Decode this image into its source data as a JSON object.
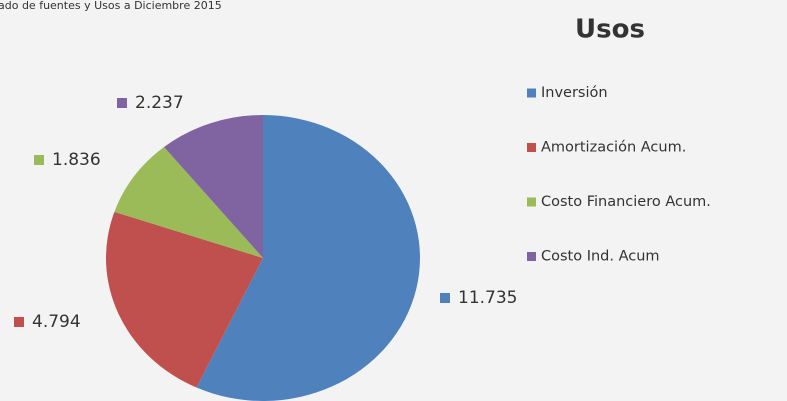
{
  "chart_data": {
    "type": "pie",
    "subtitle": "ado de fuentes y Usos a Diciembre 2015",
    "title": "Usos",
    "categories": [
      "Inversión",
      "Amortización Acum.",
      "Costo Financiero Acum.",
      "Costo Ind. Acum"
    ],
    "values": [
      11735,
      4794,
      1836,
      2237
    ],
    "value_labels": [
      "11.735",
      "4.794",
      "1.836",
      "2.237"
    ],
    "colors": [
      "#4f81bd",
      "#c0504d",
      "#9bbb59",
      "#8064a2"
    ],
    "legend": "right"
  }
}
